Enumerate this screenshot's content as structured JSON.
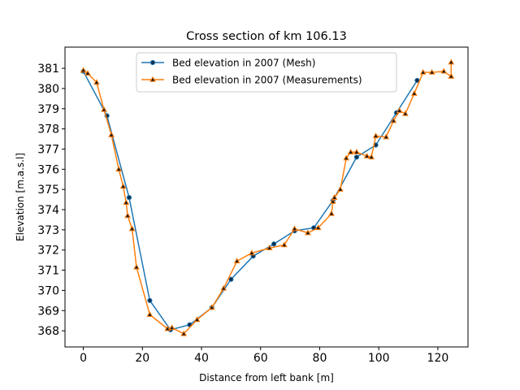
{
  "chart_data": {
    "type": "line",
    "title": "Cross section of km 106.13",
    "xlabel": "Distance from left bank [m]",
    "ylabel": "Elevation [m.a.s.l]",
    "xlim": [
      -6.2,
      130.2
    ],
    "ylim": [
      367.2,
      382.05
    ],
    "xticks": [
      0,
      20,
      40,
      60,
      80,
      100,
      120
    ],
    "yticks": [
      368,
      369,
      370,
      371,
      372,
      373,
      374,
      375,
      376,
      377,
      378,
      379,
      380,
      381
    ],
    "grid": false,
    "legend_position": "top-center",
    "series": [
      {
        "name": "Bed elevation in 2007 (Mesh)",
        "color": "#1f77b4",
        "marker": "circle",
        "x": [
          0,
          8,
          15.5,
          22.5,
          29.5,
          36,
          43.5,
          50,
          57.5,
          64.5,
          71.5,
          78,
          84.5,
          92.5,
          99,
          106,
          113
        ],
        "y": [
          380.85,
          378.65,
          374.6,
          369.5,
          368.05,
          368.3,
          369.15,
          370.55,
          371.7,
          372.3,
          372.95,
          373.1,
          374.45,
          376.6,
          377.2,
          378.8,
          380.4
        ]
      },
      {
        "name": "Bed elevation in 2007 (Measurements)",
        "color": "#ff7f0e",
        "marker": "triangle",
        "x": [
          0,
          1.5,
          4.5,
          7,
          9.5,
          12,
          13.5,
          14.5,
          15,
          16.5,
          18,
          22.5,
          28.5,
          30,
          34,
          38.5,
          43.5,
          47.5,
          52,
          57,
          63,
          68,
          71.5,
          76,
          79.5,
          84,
          84.5,
          85,
          87,
          89,
          90.5,
          92.5,
          96,
          97.5,
          99,
          102.5,
          105,
          107,
          109,
          112,
          115,
          118,
          122,
          124.5,
          124.5,
          124.5
        ],
        "y": [
          380.9,
          380.75,
          380.3,
          378.95,
          377.7,
          376.0,
          375.15,
          374.35,
          373.7,
          373.05,
          371.15,
          368.8,
          368.1,
          368.15,
          367.85,
          368.55,
          369.15,
          370.1,
          371.45,
          371.85,
          372.1,
          372.25,
          373.05,
          372.85,
          373.1,
          373.8,
          374.4,
          374.6,
          375.0,
          376.55,
          376.85,
          376.85,
          376.65,
          376.6,
          377.65,
          377.6,
          378.4,
          378.9,
          378.75,
          379.75,
          380.8,
          380.8,
          380.85,
          380.6,
          381.3,
          380.6
        ]
      }
    ]
  }
}
